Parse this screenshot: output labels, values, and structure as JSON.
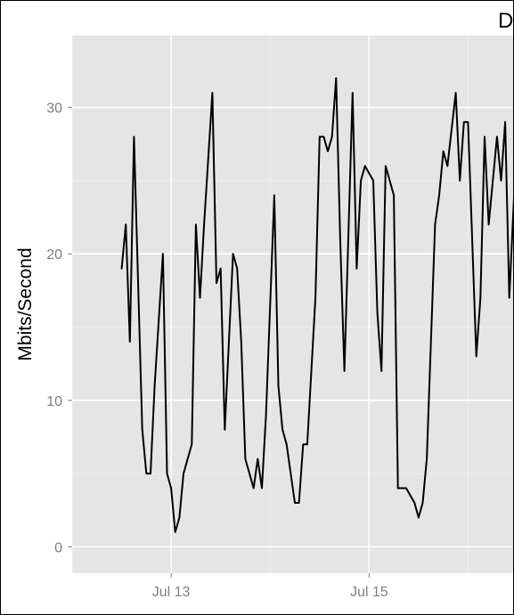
{
  "chart_data": {
    "type": "line",
    "title": "D",
    "xlabel": "",
    "ylabel": "Mbits/Second",
    "ylim": [
      -1.8,
      34.9
    ],
    "xlim": [
      "2011-07-12T00:00",
      "2011-07-16T12:00"
    ],
    "x_ticks": [
      {
        "value": "2011-07-13",
        "label": "Jul 13"
      },
      {
        "value": "2011-07-15",
        "label": "Jul 15"
      }
    ],
    "y_ticks": [
      {
        "value": 0,
        "label": "0"
      },
      {
        "value": 10,
        "label": "10"
      },
      {
        "value": 20,
        "label": "20"
      },
      {
        "value": 30,
        "label": "30"
      }
    ],
    "grid": true,
    "background_color": "#e5e5e5",
    "grid_color": "#ffffff",
    "line_color": "#000000",
    "series": [
      {
        "x": [
          "2011-07-12T12:00",
          "2011-07-12T13:00",
          "2011-07-12T14:00",
          "2011-07-12T15:00",
          "2011-07-12T17:00",
          "2011-07-12T18:00",
          "2011-07-12T19:00",
          "2011-07-12T20:00",
          "2011-07-12T22:00",
          "2011-07-12T23:00",
          "2011-07-13T00:00",
          "2011-07-13T01:00",
          "2011-07-13T02:00",
          "2011-07-13T03:00",
          "2011-07-13T05:00",
          "2011-07-13T06:00",
          "2011-07-13T07:00",
          "2011-07-13T08:00",
          "2011-07-13T10:00",
          "2011-07-13T11:00",
          "2011-07-13T12:00",
          "2011-07-13T13:00",
          "2011-07-13T15:00",
          "2011-07-13T16:00",
          "2011-07-13T17:00",
          "2011-07-13T18:00",
          "2011-07-13T20:00",
          "2011-07-13T21:00",
          "2011-07-13T22:00",
          "2011-07-13T23:00",
          "2011-07-14T01:00",
          "2011-07-14T02:00",
          "2011-07-14T03:00",
          "2011-07-14T04:00",
          "2011-07-14T06:00",
          "2011-07-14T07:00",
          "2011-07-14T08:00",
          "2011-07-14T09:00",
          "2011-07-14T11:00",
          "2011-07-14T12:00",
          "2011-07-14T13:00",
          "2011-07-14T14:00",
          "2011-07-14T15:00",
          "2011-07-14T16:00",
          "2011-07-14T17:00",
          "2011-07-14T18:00",
          "2011-07-14T20:00",
          "2011-07-14T21:00",
          "2011-07-14T22:00",
          "2011-07-14T23:00",
          "2011-07-15T01:00",
          "2011-07-15T02:00",
          "2011-07-15T03:00",
          "2011-07-15T04:00",
          "2011-07-15T06:00",
          "2011-07-15T07:00",
          "2011-07-15T08:00",
          "2011-07-15T09:00",
          "2011-07-15T11:00",
          "2011-07-15T12:00",
          "2011-07-15T13:00",
          "2011-07-15T14:00",
          "2011-07-15T16:00",
          "2011-07-15T17:00",
          "2011-07-15T18:00",
          "2011-07-15T19:00",
          "2011-07-15T21:00",
          "2011-07-15T22:00",
          "2011-07-15T23:00",
          "2011-07-16T00:00",
          "2011-07-16T02:00",
          "2011-07-16T03:00",
          "2011-07-16T04:00",
          "2011-07-16T05:00",
          "2011-07-16T07:00",
          "2011-07-16T08:00",
          "2011-07-16T09:00",
          "2011-07-16T10:00",
          "2011-07-16T12:00"
        ],
        "values": [
          19,
          22,
          14,
          28,
          8,
          5,
          5,
          11,
          20,
          5,
          4,
          1,
          2,
          5,
          7,
          22,
          17,
          22,
          31,
          18,
          19,
          8,
          20,
          19,
          14,
          6,
          4,
          6,
          4,
          9,
          24,
          11,
          8,
          7,
          3,
          3,
          7,
          7,
          17,
          28,
          28,
          27,
          28,
          32,
          21,
          12,
          31,
          19,
          25,
          26,
          25,
          16,
          12,
          26,
          24,
          4,
          4,
          4,
          3,
          2,
          3,
          6,
          22,
          24,
          27,
          26,
          31,
          25,
          29,
          29,
          13,
          17,
          28,
          22,
          28,
          25,
          29,
          17,
          29
        ]
      }
    ]
  }
}
